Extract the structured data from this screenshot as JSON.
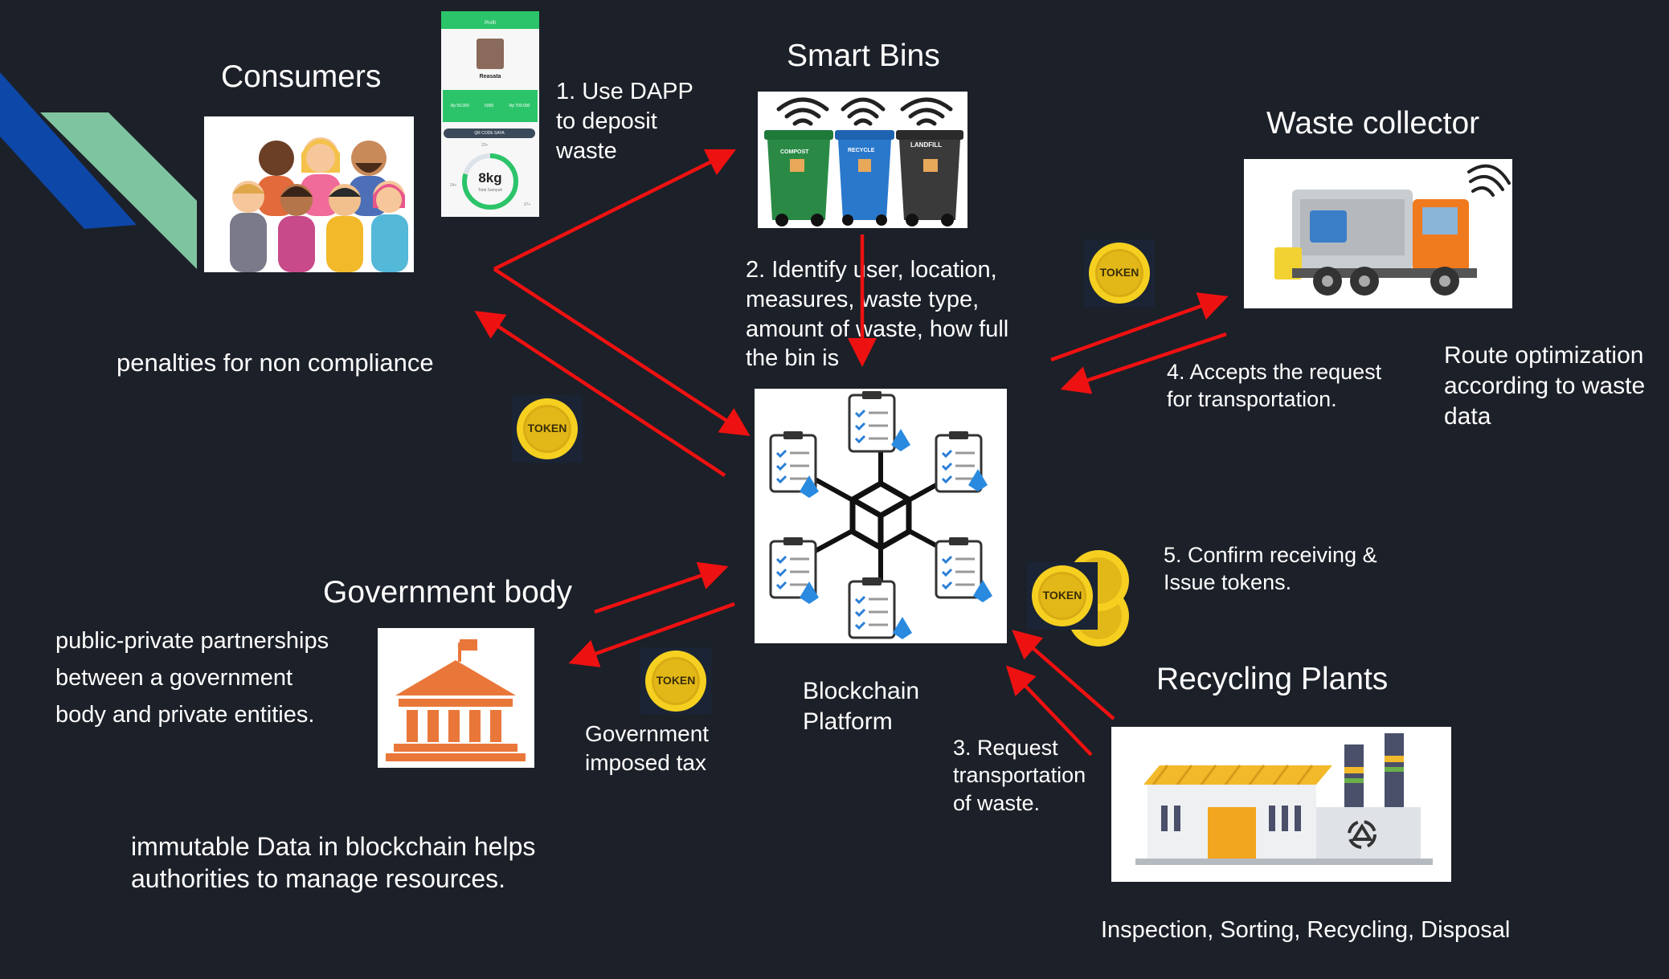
{
  "consumers": {
    "title": "Consumers",
    "step": "1. Use DAPP to deposit waste",
    "note": "penalties for non compliance",
    "phone": {
      "app_name": "Profil",
      "user_name": "Reasata",
      "stats": [
        "Rp 50.000",
        "5000",
        "Rp 700.000"
      ],
      "button": "QR CODE SAYA",
      "amount": "8kg",
      "amount_sub": "Total Sampah",
      "ring_left": "24+",
      "ring_top": "23+",
      "ring_right": "97+"
    }
  },
  "smart_bins": {
    "title": "Smart Bins",
    "bins": [
      "COMPOST",
      "RECYCLE",
      "LANDFILL"
    ],
    "step": "2. Identify user, location, measures,  waste type, amount of waste, how full the bin is"
  },
  "waste_collector": {
    "title": "Waste collector",
    "step": "4. Accepts the request for  transportation.",
    "note": "Route optimization according to waste data"
  },
  "blockchain": {
    "title": "Blockchain Platform"
  },
  "government": {
    "title": "Government body",
    "note": "public-private partnerships between a government body and private entities.",
    "tax": "Government imposed tax",
    "bottom_note": "immutable Data in blockchain helps authorities to manage resources."
  },
  "recycling": {
    "title": "Recycling Plants",
    "step3": "3. Request transportation of waste.",
    "step5": "5. Confirm receiving & Issue tokens.",
    "note": "Inspection, Sorting, Recycling, Disposal"
  },
  "token_label": "TOKEN",
  "colors": {
    "background": "#1c2028",
    "arrow": "#ee1111",
    "coin": "#f2c618",
    "accent_blue": "#0d47a8",
    "accent_green": "#7fc4a0"
  }
}
